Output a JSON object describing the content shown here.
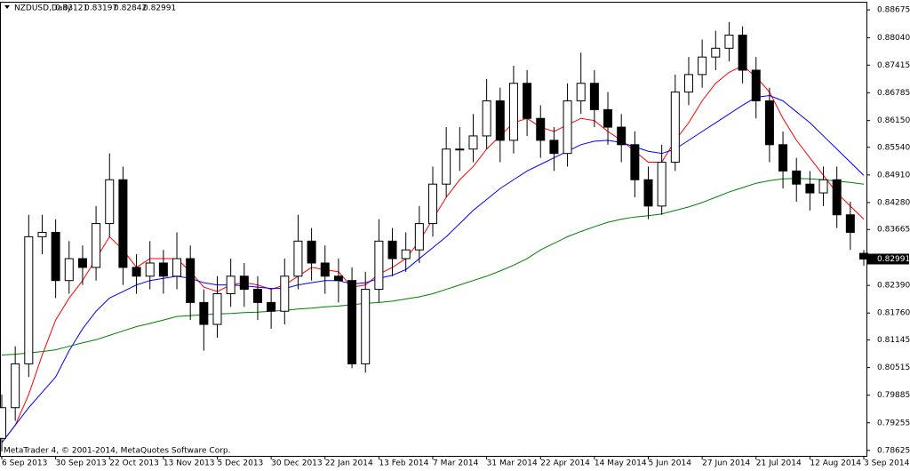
{
  "chart_data": {
    "type": "candlestick",
    "title": "NZDUSD,Daily",
    "header_values": [
      0.83121,
      0.83197,
      0.82842,
      0.82991
    ],
    "footer": "MetaTrader 4, © 2001-2014, MetaQuotes Software Corp.",
    "last_price": {
      "value": 0.82991,
      "label": "0.82991"
    },
    "categories": [
      "6 Sep 2013",
      null,
      null,
      null,
      "30 Sep 2013",
      null,
      null,
      null,
      "22 Oct 2013",
      null,
      null,
      null,
      "13 Nov 2013",
      null,
      null,
      null,
      "5 Dec 2013",
      null,
      null,
      null,
      "30 Dec 2013",
      null,
      null,
      null,
      "22 Jan 2014",
      null,
      null,
      null,
      "13 Feb 2014",
      null,
      null,
      null,
      "7 Mar 2014",
      null,
      null,
      null,
      "31 Mar 2014",
      null,
      null,
      null,
      "22 Apr 2014",
      null,
      null,
      null,
      "14 May 2014",
      null,
      null,
      null,
      "5 Jun 2014",
      null,
      null,
      null,
      "27 Jun 2014",
      null,
      null,
      null,
      "21 Jul 2014",
      null,
      null,
      null,
      "12 Aug 2014",
      null,
      null,
      null,
      "3 Sep 2014"
    ],
    "open": [
      0.789,
      0.796,
      0.806,
      0.835,
      0.836,
      0.825,
      0.83,
      0.828,
      0.838,
      0.848,
      0.828,
      0.826,
      0.829,
      0.826,
      0.83,
      0.82,
      0.815,
      0.822,
      0.826,
      0.823,
      0.82,
      0.818,
      0.826,
      0.834,
      0.829,
      0.826,
      0.825,
      0.806,
      0.823,
      0.834,
      0.83,
      0.832,
      0.838,
      0.847,
      0.855,
      0.855,
      0.858,
      0.866,
      0.857,
      0.87,
      0.862,
      0.857,
      0.854,
      0.866,
      0.87,
      0.864,
      0.86,
      0.856,
      0.848,
      0.842,
      0.852,
      0.868,
      0.872,
      0.876,
      0.878,
      0.881,
      0.873,
      0.866,
      0.856,
      0.85,
      0.847,
      0.845,
      0.848,
      0.84,
      0.83121
    ],
    "high": [
      0.799,
      0.81,
      0.84,
      0.84,
      0.839,
      0.834,
      0.833,
      0.842,
      0.854,
      0.851,
      0.831,
      0.834,
      0.832,
      0.836,
      0.833,
      0.823,
      0.826,
      0.83,
      0.829,
      0.826,
      0.823,
      0.83,
      0.84,
      0.837,
      0.833,
      0.83,
      0.828,
      0.827,
      0.839,
      0.837,
      0.836,
      0.842,
      0.851,
      0.86,
      0.86,
      0.863,
      0.871,
      0.869,
      0.874,
      0.873,
      0.865,
      0.86,
      0.87,
      0.877,
      0.873,
      0.868,
      0.863,
      0.859,
      0.851,
      0.856,
      0.872,
      0.876,
      0.88,
      0.882,
      0.884,
      0.883,
      0.876,
      0.869,
      0.859,
      0.853,
      0.85,
      0.851,
      0.851,
      0.843,
      0.83197
    ],
    "low": [
      0.786,
      0.793,
      0.803,
      0.831,
      0.821,
      0.822,
      0.824,
      0.825,
      0.835,
      0.824,
      0.822,
      0.823,
      0.822,
      0.823,
      0.816,
      0.809,
      0.812,
      0.819,
      0.819,
      0.816,
      0.814,
      0.815,
      0.823,
      0.825,
      0.822,
      0.82,
      0.805,
      0.804,
      0.82,
      0.826,
      0.827,
      0.829,
      0.835,
      0.844,
      0.85,
      0.852,
      0.855,
      0.852,
      0.854,
      0.858,
      0.853,
      0.85,
      0.851,
      0.863,
      0.86,
      0.856,
      0.852,
      0.844,
      0.839,
      0.84,
      0.85,
      0.865,
      0.869,
      0.873,
      0.875,
      0.87,
      0.862,
      0.852,
      0.846,
      0.843,
      0.841,
      0.842,
      0.837,
      0.832,
      0.82842
    ],
    "close": [
      0.796,
      0.806,
      0.835,
      0.836,
      0.825,
      0.83,
      0.828,
      0.838,
      0.848,
      0.828,
      0.826,
      0.829,
      0.826,
      0.83,
      0.82,
      0.815,
      0.822,
      0.826,
      0.823,
      0.82,
      0.818,
      0.826,
      0.834,
      0.829,
      0.826,
      0.825,
      0.806,
      0.823,
      0.834,
      0.83,
      0.832,
      0.838,
      0.847,
      0.855,
      0.855,
      0.858,
      0.866,
      0.857,
      0.87,
      0.862,
      0.857,
      0.854,
      0.866,
      0.87,
      0.864,
      0.86,
      0.856,
      0.848,
      0.842,
      0.852,
      0.868,
      0.872,
      0.876,
      0.878,
      0.881,
      0.873,
      0.866,
      0.856,
      0.85,
      0.847,
      0.845,
      0.848,
      0.84,
      0.836,
      0.82991
    ],
    "series": [
      {
        "color": "#ff0000",
        "values": [
          0.788,
          0.792,
          0.799,
          0.808,
          0.816,
          0.821,
          0.825,
          0.83,
          0.835,
          0.832,
          0.828,
          0.83,
          0.83,
          0.83,
          0.827,
          0.8235,
          0.8225,
          0.824,
          0.8245,
          0.824,
          0.823,
          0.824,
          0.826,
          0.828,
          0.8275,
          0.827,
          0.8235,
          0.824,
          0.8265,
          0.828,
          0.83,
          0.834,
          0.839,
          0.844,
          0.848,
          0.851,
          0.855,
          0.858,
          0.861,
          0.862,
          0.86,
          0.859,
          0.8605,
          0.862,
          0.8615,
          0.859,
          0.857,
          0.8545,
          0.852,
          0.852,
          0.857,
          0.861,
          0.866,
          0.87,
          0.8725,
          0.874,
          0.8715,
          0.868,
          0.862,
          0.857,
          0.853,
          0.849,
          0.845,
          0.842,
          0.839
        ]
      },
      {
        "color": "#0000ff",
        "values": [
          0.788,
          0.792,
          0.796,
          0.7995,
          0.803,
          0.809,
          0.814,
          0.818,
          0.821,
          0.8225,
          0.824,
          0.825,
          0.8255,
          0.826,
          0.8255,
          0.8245,
          0.824,
          0.824,
          0.8238,
          0.8235,
          0.8232,
          0.8232,
          0.824,
          0.8245,
          0.825,
          0.825,
          0.8242,
          0.8245,
          0.8255,
          0.8262,
          0.8275,
          0.83,
          0.8325,
          0.835,
          0.838,
          0.841,
          0.8435,
          0.846,
          0.848,
          0.85,
          0.8515,
          0.853,
          0.8545,
          0.856,
          0.8568,
          0.857,
          0.8565,
          0.8555,
          0.8545,
          0.854,
          0.855,
          0.857,
          0.859,
          0.861,
          0.863,
          0.865,
          0.8668,
          0.8672,
          0.866,
          0.8635,
          0.861,
          0.858,
          0.855,
          0.852,
          0.849
        ]
      },
      {
        "color": "#008000",
        "values": [
          0.808,
          0.8082,
          0.8085,
          0.8088,
          0.8092,
          0.81,
          0.8108,
          0.8115,
          0.8125,
          0.8135,
          0.8145,
          0.8152,
          0.816,
          0.8168,
          0.817,
          0.8172,
          0.8174,
          0.8175,
          0.8177,
          0.8178,
          0.818,
          0.8182,
          0.8185,
          0.8187,
          0.819,
          0.8192,
          0.8195,
          0.8198,
          0.82,
          0.8203,
          0.8208,
          0.8213,
          0.822,
          0.823,
          0.824,
          0.825,
          0.826,
          0.8272,
          0.8285,
          0.83,
          0.832,
          0.8335,
          0.835,
          0.8362,
          0.8373,
          0.8383,
          0.839,
          0.8395,
          0.8398,
          0.8402,
          0.841,
          0.8418,
          0.8428,
          0.844,
          0.8452,
          0.8462,
          0.8472,
          0.8478,
          0.8482,
          0.8483,
          0.8482,
          0.848,
          0.8477,
          0.8474,
          0.847
        ]
      }
    ],
    "ylim": [
      0.785,
      0.8884
    ],
    "yticks": [
      0.88675,
      {
        "value": 0.8804,
        "label": "0.88040"
      },
      0.87415,
      0.86785,
      {
        "value": 0.8615,
        "label": "0.86150"
      },
      {
        "value": 0.8554,
        "label": "0.85540"
      },
      {
        "value": 0.8491,
        "label": "0.84910"
      },
      {
        "value": 0.8428,
        "label": "0.84280"
      },
      0.83665,
      {
        "value": 0.8239,
        "label": "0.82390"
      },
      {
        "value": 0.8176,
        "label": "0.81760"
      },
      0.81145,
      0.80515,
      0.79885,
      0.79255,
      0.78625
    ],
    "bull_color": "#ffffff",
    "bear_color": "#000000"
  }
}
